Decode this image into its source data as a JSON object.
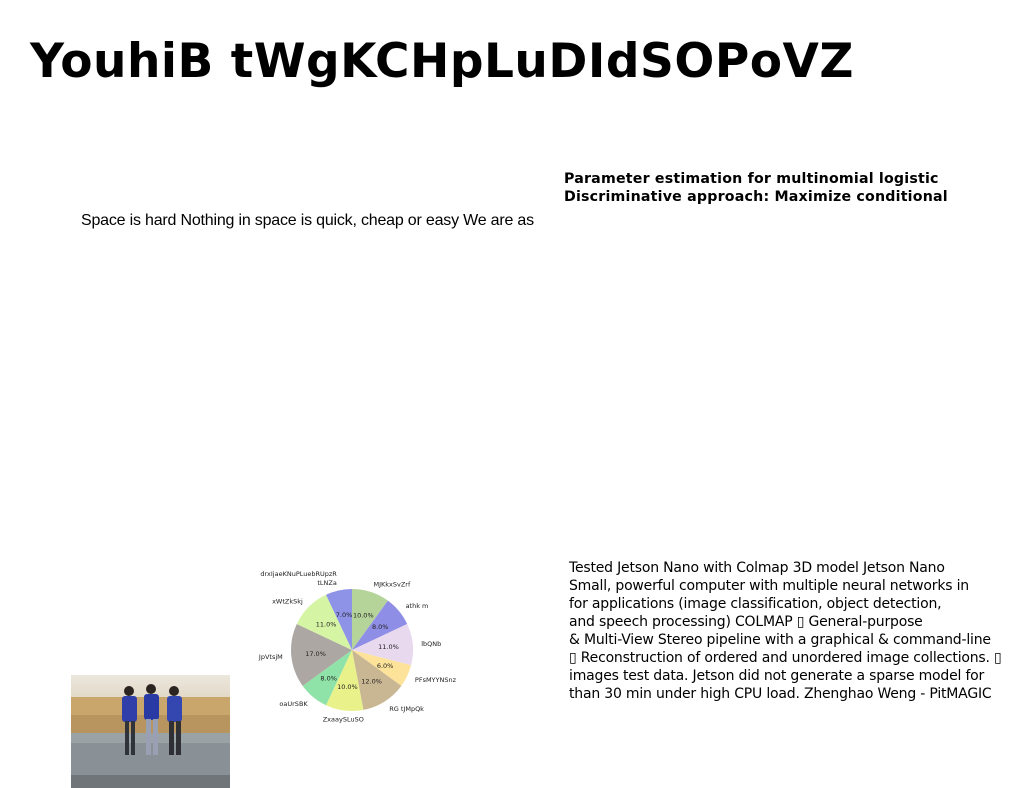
{
  "slide": {
    "title": "YouhiB tWgKCHpLuDIdSOPoVZ",
    "left_text": "Space is hard Nothing in space is quick, cheap or easy We are as",
    "right_heading_lines": [
      "Parameter estimation for multinomial logistic",
      "Discriminative approach: Maximize conditional"
    ],
    "right_body_lines": [
      "Tested Jetson Nano with Colmap 3D model Jetson Nano",
      "Small, powerful computer with multiple neural networks in",
      "for applications (image classification, object detection,",
      "and speech processing) COLMAP ▯ General-purpose",
      "& Multi-View Stereo pipeline with a graphical & command-line",
      "▯ Reconstruction of ordered and unordered image collections. ▯",
      "images test data. Jetson did not generate a sparse model for",
      "than 30 min under high CPU load. Zhenghao Weng - PitMAGIC"
    ]
  },
  "chart_data": {
    "type": "pie",
    "title": "",
    "start_angle_deg": 90,
    "direction": "clockwise",
    "slices": [
      {
        "label": "MJKkxSvZrf",
        "value": 10.0,
        "color": "#b5d49a"
      },
      {
        "label": "athk m",
        "value": 8.0,
        "color": "#8f8ee6"
      },
      {
        "label": "lbQNb",
        "value": 11.0,
        "color": "#e8d9ef"
      },
      {
        "label": "PFsMYYNSnz",
        "value": 6.0,
        "color": "#fde39a"
      },
      {
        "label": "RG tJMpQk",
        "value": 12.0,
        "color": "#c9b793"
      },
      {
        "label": "ZxaaySLuSO",
        "value": 10.0,
        "color": "#e9f28a"
      },
      {
        "label": "oaUrSBK",
        "value": 8.0,
        "color": "#8fe3a8"
      },
      {
        "label": "JpVtsjM",
        "value": 17.0,
        "color": "#ada7a3"
      },
      {
        "label": "xWtZkSkj",
        "value": 11.0,
        "color": "#d6f5a4"
      },
      {
        "label": "drxIjaeKNuPLuebRUpzR tLNZa",
        "value": 7.0,
        "color": "#8e93e8"
      }
    ]
  }
}
